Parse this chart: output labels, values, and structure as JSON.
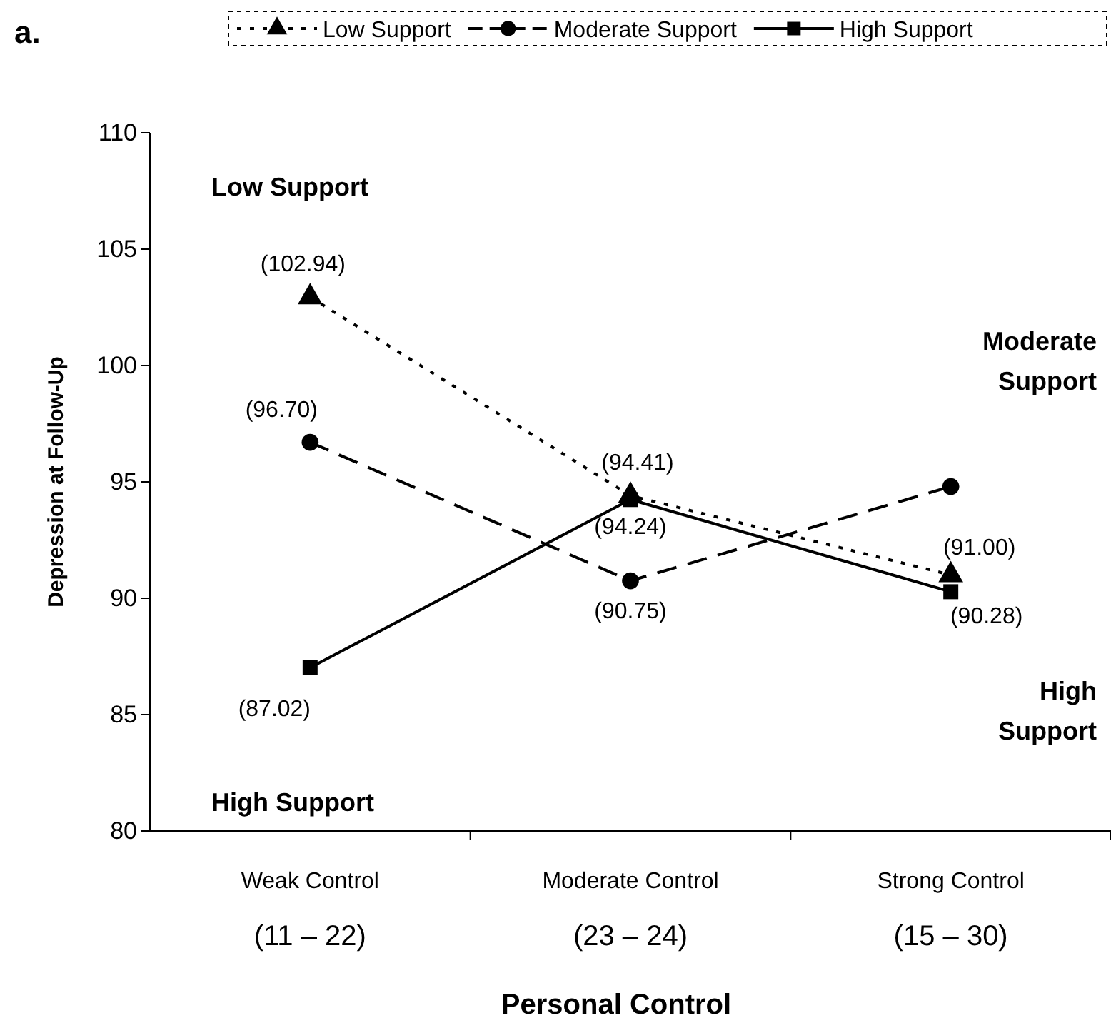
{
  "chart_data": {
    "type": "line",
    "xlabel": "Personal Control",
    "ylabel": "Depression at Follow-Up",
    "categories": [
      "Weak Control (11 – 22)",
      "Moderate Control (23 – 24)",
      "Strong Control (15 – 30)"
    ],
    "ylim": [
      80,
      110
    ],
    "yticks": [
      80,
      85,
      90,
      95,
      100,
      105,
      110
    ],
    "grid": false,
    "legend": "top",
    "series": [
      {
        "name": "Low Support",
        "color": "#000000",
        "marker": "triangle",
        "line_style": "dotted",
        "values": [
          102.94,
          94.41,
          91.0
        ],
        "value_labels": [
          "(102.94)",
          "(94.41)",
          "(91.00)"
        ]
      },
      {
        "name": "Moderate Support",
        "color": "#000000",
        "marker": "circle",
        "line_style": "dashed",
        "values": [
          96.7,
          90.75,
          94.8
        ],
        "value_labels": [
          "(96.70)",
          "(90.75)",
          null
        ]
      },
      {
        "name": "High Support",
        "color": "#000000",
        "marker": "square",
        "line_style": "solid",
        "values": [
          87.02,
          94.24,
          90.28
        ],
        "value_labels": [
          "(87.02)",
          "(94.24)",
          "(90.28)"
        ]
      }
    ],
    "annotations": [
      "a.",
      "Low Support",
      "Moderate Support",
      "High Support",
      "High Support"
    ]
  }
}
